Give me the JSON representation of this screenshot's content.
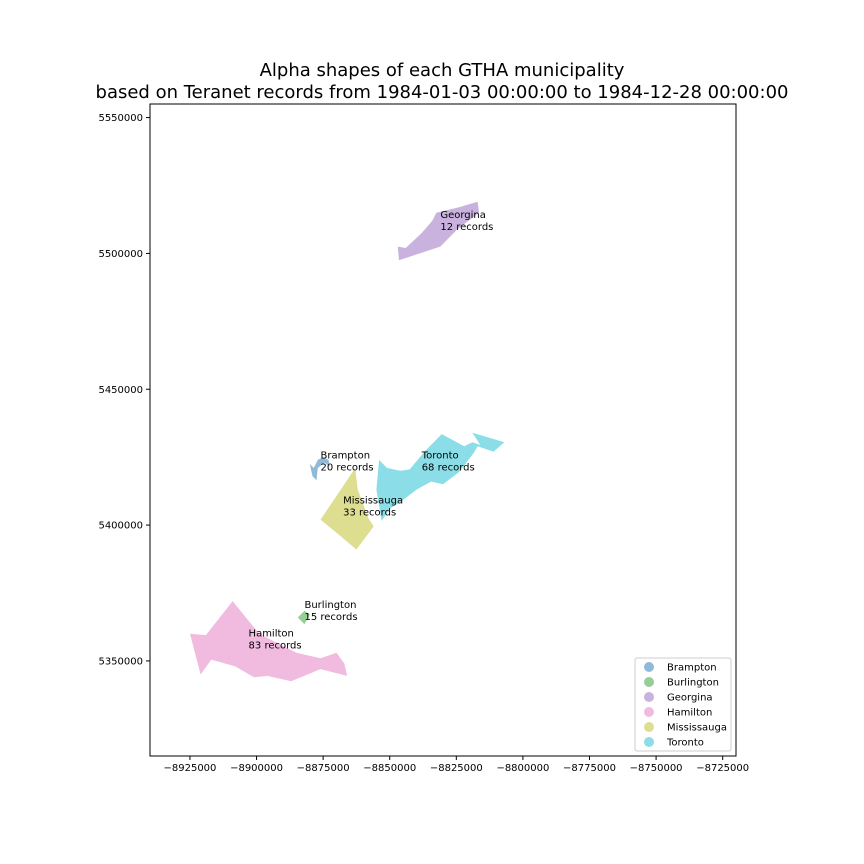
{
  "title_line1": "Alpha shapes of each GTHA municipality",
  "title_line2": "based on Teranet records from 1984-01-03 00:00:00 to 1984-12-28 00:00:00",
  "chart_data": {
    "type": "map",
    "xlim": [
      -8940000,
      -8720000
    ],
    "ylim": [
      5315000,
      5555000
    ],
    "xticks": [
      -8925000,
      -8900000,
      -8875000,
      -8850000,
      -8825000,
      -8800000,
      -8775000,
      -8750000,
      -8725000
    ],
    "xtick_labels": [
      "−8925000",
      "−8900000",
      "−8875000",
      "−8850000",
      "−8825000",
      "−8800000",
      "−8775000",
      "−8750000",
      "−8725000"
    ],
    "yticks": [
      5350000,
      5400000,
      5450000,
      5500000,
      5550000
    ],
    "ytick_labels": [
      "5350000",
      "5400000",
      "5450000",
      "5500000",
      "5550000"
    ],
    "legend_position": "lower-right",
    "regions": [
      {
        "name": "Brampton",
        "color": "#1f77b4",
        "alpha": 0.5,
        "label_lines": [
          "Brampton",
          "20 records"
        ],
        "label_at": [
          -8876000,
          5424500
        ],
        "polygon": [
          [
            -8880000,
            5422500
          ],
          [
            -8878500,
            5421000
          ],
          [
            -8877000,
            5424000
          ],
          [
            -8875000,
            5425000
          ],
          [
            -8873000,
            5424000
          ],
          [
            -8872500,
            5421500
          ],
          [
            -8874500,
            5423000
          ],
          [
            -8877000,
            5421000
          ],
          [
            -8877500,
            5416500
          ],
          [
            -8879000,
            5418000
          ]
        ]
      },
      {
        "name": "Burlington",
        "color": "#2ca02c",
        "alpha": 0.5,
        "label_lines": [
          "Burlington",
          "15 records"
        ],
        "label_at": [
          -8882000,
          5369500
        ],
        "polygon": [
          [
            -8884500,
            5366000
          ],
          [
            -8882000,
            5368500
          ],
          [
            -8880000,
            5367000
          ],
          [
            -8882000,
            5363500
          ]
        ]
      },
      {
        "name": "Georgina",
        "color": "#9467bd",
        "alpha": 0.5,
        "label_lines": [
          "Georgina",
          "12 records"
        ],
        "label_at": [
          -8831000,
          5513000
        ],
        "polygon": [
          [
            -8847000,
            5502500
          ],
          [
            -8844000,
            5502000
          ],
          [
            -8838000,
            5507500
          ],
          [
            -8834000,
            5512000
          ],
          [
            -8832500,
            5515000
          ],
          [
            -8824000,
            5517000
          ],
          [
            -8817000,
            5519000
          ],
          [
            -8816500,
            5515000
          ],
          [
            -8824500,
            5509000
          ],
          [
            -8831000,
            5502500
          ],
          [
            -8846500,
            5497500
          ]
        ]
      },
      {
        "name": "Hamilton",
        "color": "#e377c2",
        "alpha": 0.5,
        "label_lines": [
          "Hamilton",
          "83 records"
        ],
        "label_at": [
          -8903000,
          5359000
        ],
        "polygon": [
          [
            -8925000,
            5360000
          ],
          [
            -8919000,
            5359500
          ],
          [
            -8909000,
            5372000
          ],
          [
            -8899000,
            5360000
          ],
          [
            -8893000,
            5357000
          ],
          [
            -8885000,
            5353000
          ],
          [
            -8876000,
            5351000
          ],
          [
            -8870000,
            5353000
          ],
          [
            -8867000,
            5349000
          ],
          [
            -8866000,
            5344500
          ],
          [
            -8876000,
            5347000
          ],
          [
            -8887000,
            5342500
          ],
          [
            -8896000,
            5344500
          ],
          [
            -8901000,
            5344000
          ],
          [
            -8908000,
            5348000
          ],
          [
            -8917000,
            5350500
          ],
          [
            -8921000,
            5345000
          ]
        ]
      },
      {
        "name": "Mississauga",
        "color": "#bcbd22",
        "alpha": 0.5,
        "label_lines": [
          "Mississauga",
          "33 records"
        ],
        "label_at": [
          -8867500,
          5408000
        ],
        "polygon": [
          [
            -8863000,
            5421000
          ],
          [
            -8862000,
            5413000
          ],
          [
            -8858000,
            5402500
          ],
          [
            -8856000,
            5399500
          ],
          [
            -8862500,
            5391000
          ],
          [
            -8871000,
            5398000
          ],
          [
            -8876000,
            5402000
          ],
          [
            -8867000,
            5415000
          ]
        ]
      },
      {
        "name": "Toronto",
        "color": "#17becf",
        "alpha": 0.5,
        "label_lines": [
          "Toronto",
          "68 records"
        ],
        "label_at": [
          -8838000,
          5424500
        ],
        "polygon": [
          [
            -8854000,
            5424000
          ],
          [
            -8851000,
            5421000
          ],
          [
            -8846000,
            5420000
          ],
          [
            -8842500,
            5420500
          ],
          [
            -8837000,
            5427000
          ],
          [
            -8830500,
            5433500
          ],
          [
            -8822000,
            5429000
          ],
          [
            -8819000,
            5430500
          ],
          [
            -8816000,
            5429500
          ],
          [
            -8819000,
            5434000
          ],
          [
            -8812000,
            5432000
          ],
          [
            -8807000,
            5430500
          ],
          [
            -8811000,
            5427000
          ],
          [
            -8817000,
            5429000
          ],
          [
            -8818500,
            5426500
          ],
          [
            -8824000,
            5419500
          ],
          [
            -8830000,
            5415000
          ],
          [
            -8834500,
            5416000
          ],
          [
            -8840000,
            5413000
          ],
          [
            -8846000,
            5408500
          ],
          [
            -8850000,
            5406000
          ],
          [
            -8853000,
            5401500
          ],
          [
            -8855000,
            5413000
          ]
        ]
      }
    ]
  }
}
